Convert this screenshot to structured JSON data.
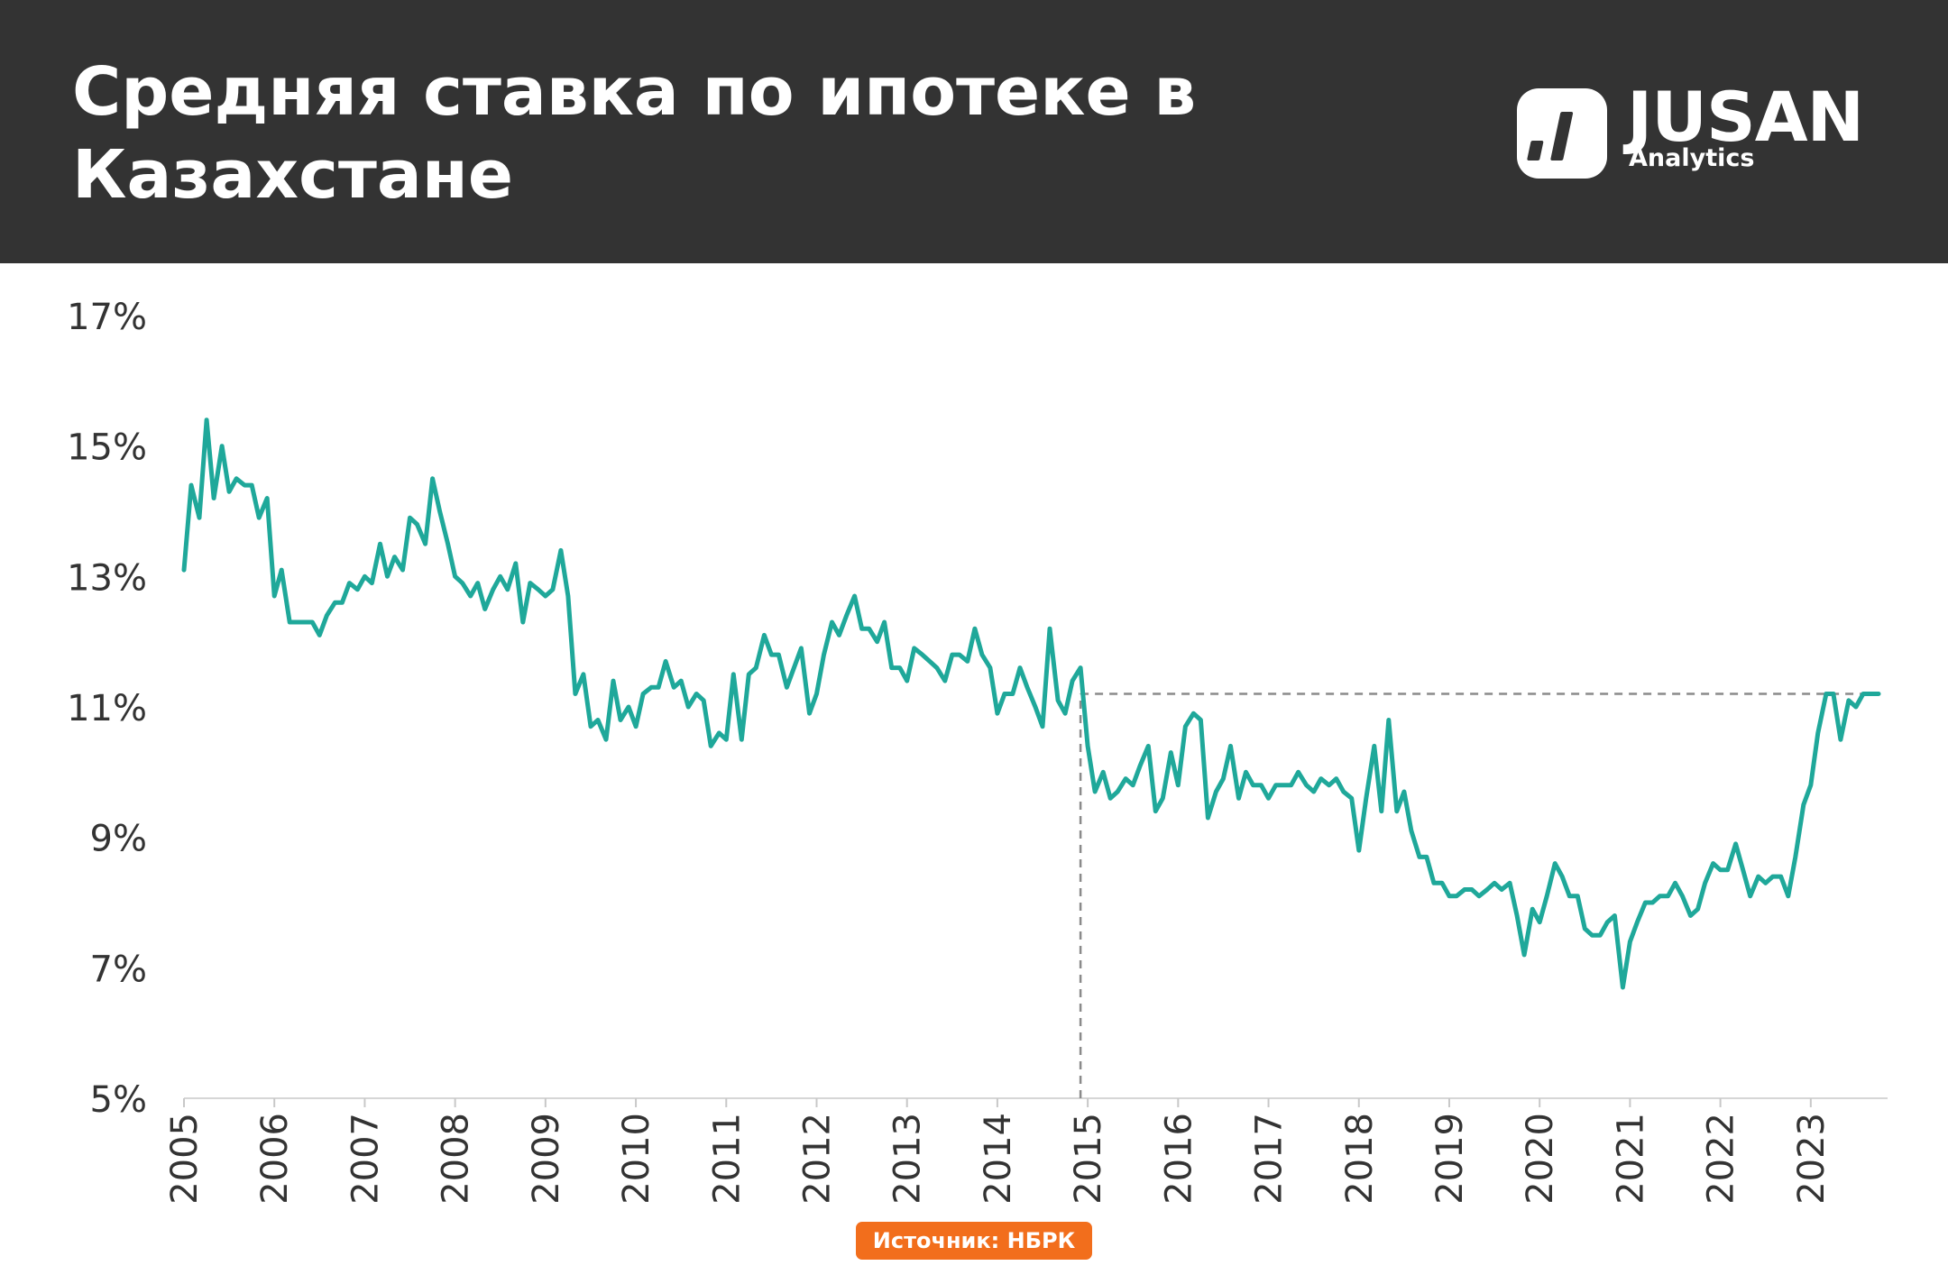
{
  "header": {
    "title_line1": "Средняя ставка по ипотеке в",
    "title_line2": "Казахстане"
  },
  "logo": {
    "name": "JUSAN",
    "subtitle": "Analytics",
    "icon": "chart-bars-icon"
  },
  "source": "Источник: НБРК",
  "colors": {
    "header_bg": "#333333",
    "line": "#1fa89a",
    "reference_line": "#8a8a8a",
    "source_badge": "#f26e1c"
  },
  "chart_data": {
    "type": "line",
    "title": "Средняя ставка по ипотеке в Казахстане",
    "xlabel": "",
    "ylabel": "",
    "x_tick_labels": [
      "2005",
      "2006",
      "2007",
      "2008",
      "2009",
      "2010",
      "2011",
      "2012",
      "2013",
      "2014",
      "2015",
      "2016",
      "2017",
      "2018",
      "2019",
      "2020",
      "2021",
      "2022",
      "2023"
    ],
    "y_tick_labels": [
      "5%",
      "7%",
      "9%",
      "11%",
      "13%",
      "15%",
      "17%"
    ],
    "y_ticks": [
      5,
      7,
      9,
      11,
      13,
      15,
      17
    ],
    "ylim": [
      5,
      17
    ],
    "xlim": [
      2005,
      2023.85
    ],
    "grid": false,
    "legend": "none",
    "series": [
      {
        "values": [
          [
            2005.0,
            13.1
          ],
          [
            2005.08,
            14.4
          ],
          [
            2005.17,
            13.9
          ],
          [
            2005.25,
            15.4
          ],
          [
            2005.33,
            14.2
          ],
          [
            2005.42,
            15.0
          ],
          [
            2005.5,
            14.3
          ],
          [
            2005.58,
            14.5
          ],
          [
            2005.67,
            14.4
          ],
          [
            2005.75,
            14.4
          ],
          [
            2005.83,
            13.9
          ],
          [
            2005.92,
            14.2
          ],
          [
            2006.0,
            12.7
          ],
          [
            2006.08,
            13.1
          ],
          [
            2006.17,
            12.3
          ],
          [
            2006.25,
            12.3
          ],
          [
            2006.33,
            12.3
          ],
          [
            2006.42,
            12.3
          ],
          [
            2006.5,
            12.1
          ],
          [
            2006.58,
            12.4
          ],
          [
            2006.67,
            12.6
          ],
          [
            2006.75,
            12.6
          ],
          [
            2006.83,
            12.9
          ],
          [
            2006.92,
            12.8
          ],
          [
            2007.0,
            13.0
          ],
          [
            2007.08,
            12.9
          ],
          [
            2007.17,
            13.5
          ],
          [
            2007.25,
            13.0
          ],
          [
            2007.33,
            13.3
          ],
          [
            2007.42,
            13.1
          ],
          [
            2007.5,
            13.9
          ],
          [
            2007.58,
            13.8
          ],
          [
            2007.67,
            13.5
          ],
          [
            2007.75,
            14.5
          ],
          [
            2007.83,
            14.0
          ],
          [
            2007.92,
            13.5
          ],
          [
            2008.0,
            13.0
          ],
          [
            2008.08,
            12.9
          ],
          [
            2008.17,
            12.7
          ],
          [
            2008.25,
            12.9
          ],
          [
            2008.33,
            12.5
          ],
          [
            2008.42,
            12.8
          ],
          [
            2008.5,
            13.0
          ],
          [
            2008.58,
            12.8
          ],
          [
            2008.67,
            13.2
          ],
          [
            2008.75,
            12.3
          ],
          [
            2008.83,
            12.9
          ],
          [
            2008.92,
            12.8
          ],
          [
            2009.0,
            12.7
          ],
          [
            2009.08,
            12.8
          ],
          [
            2009.17,
            13.4
          ],
          [
            2009.25,
            12.7
          ],
          [
            2009.33,
            11.2
          ],
          [
            2009.42,
            11.5
          ],
          [
            2009.5,
            10.7
          ],
          [
            2009.58,
            10.8
          ],
          [
            2009.67,
            10.5
          ],
          [
            2009.75,
            11.4
          ],
          [
            2009.83,
            10.8
          ],
          [
            2009.92,
            11.0
          ],
          [
            2010.0,
            10.7
          ],
          [
            2010.08,
            11.2
          ],
          [
            2010.17,
            11.3
          ],
          [
            2010.25,
            11.3
          ],
          [
            2010.33,
            11.7
          ],
          [
            2010.42,
            11.3
          ],
          [
            2010.5,
            11.4
          ],
          [
            2010.58,
            11.0
          ],
          [
            2010.67,
            11.2
          ],
          [
            2010.75,
            11.1
          ],
          [
            2010.83,
            10.4
          ],
          [
            2010.92,
            10.6
          ],
          [
            2011.0,
            10.5
          ],
          [
            2011.08,
            11.5
          ],
          [
            2011.17,
            10.5
          ],
          [
            2011.25,
            11.5
          ],
          [
            2011.33,
            11.6
          ],
          [
            2011.42,
            12.1
          ],
          [
            2011.5,
            11.8
          ],
          [
            2011.58,
            11.8
          ],
          [
            2011.67,
            11.3
          ],
          [
            2011.75,
            11.6
          ],
          [
            2011.83,
            11.9
          ],
          [
            2011.92,
            10.9
          ],
          [
            2012.0,
            11.2
          ],
          [
            2012.08,
            11.8
          ],
          [
            2012.17,
            12.3
          ],
          [
            2012.25,
            12.1
          ],
          [
            2012.33,
            12.4
          ],
          [
            2012.42,
            12.7
          ],
          [
            2012.5,
            12.2
          ],
          [
            2012.58,
            12.2
          ],
          [
            2012.67,
            12.0
          ],
          [
            2012.75,
            12.3
          ],
          [
            2012.83,
            11.6
          ],
          [
            2012.92,
            11.6
          ],
          [
            2013.0,
            11.4
          ],
          [
            2013.08,
            11.9
          ],
          [
            2013.17,
            11.8
          ],
          [
            2013.25,
            11.7
          ],
          [
            2013.33,
            11.6
          ],
          [
            2013.42,
            11.4
          ],
          [
            2013.5,
            11.8
          ],
          [
            2013.58,
            11.8
          ],
          [
            2013.67,
            11.7
          ],
          [
            2013.75,
            12.2
          ],
          [
            2013.83,
            11.8
          ],
          [
            2013.92,
            11.6
          ],
          [
            2014.0,
            10.9
          ],
          [
            2014.08,
            11.2
          ],
          [
            2014.17,
            11.2
          ],
          [
            2014.25,
            11.6
          ],
          [
            2014.33,
            11.3
          ],
          [
            2014.42,
            11.0
          ],
          [
            2014.5,
            10.7
          ],
          [
            2014.58,
            12.2
          ],
          [
            2014.67,
            11.1
          ],
          [
            2014.75,
            10.9
          ],
          [
            2014.83,
            11.4
          ],
          [
            2014.92,
            11.6
          ],
          [
            2015.0,
            10.4
          ],
          [
            2015.08,
            9.7
          ],
          [
            2015.17,
            10.0
          ],
          [
            2015.25,
            9.6
          ],
          [
            2015.33,
            9.7
          ],
          [
            2015.42,
            9.9
          ],
          [
            2015.5,
            9.8
          ],
          [
            2015.58,
            10.1
          ],
          [
            2015.67,
            10.4
          ],
          [
            2015.75,
            9.4
          ],
          [
            2015.83,
            9.6
          ],
          [
            2015.92,
            10.3
          ],
          [
            2016.0,
            9.8
          ],
          [
            2016.08,
            10.7
          ],
          [
            2016.17,
            10.9
          ],
          [
            2016.25,
            10.8
          ],
          [
            2016.33,
            9.3
          ],
          [
            2016.42,
            9.7
          ],
          [
            2016.5,
            9.9
          ],
          [
            2016.58,
            10.4
          ],
          [
            2016.67,
            9.6
          ],
          [
            2016.75,
            10.0
          ],
          [
            2016.83,
            9.8
          ],
          [
            2016.92,
            9.8
          ],
          [
            2017.0,
            9.6
          ],
          [
            2017.08,
            9.8
          ],
          [
            2017.17,
            9.8
          ],
          [
            2017.25,
            9.8
          ],
          [
            2017.33,
            10.0
          ],
          [
            2017.42,
            9.8
          ],
          [
            2017.5,
            9.7
          ],
          [
            2017.58,
            9.9
          ],
          [
            2017.67,
            9.8
          ],
          [
            2017.75,
            9.9
          ],
          [
            2017.83,
            9.7
          ],
          [
            2017.92,
            9.6
          ],
          [
            2018.0,
            8.8
          ],
          [
            2018.08,
            9.6
          ],
          [
            2018.17,
            10.4
          ],
          [
            2018.25,
            9.4
          ],
          [
            2018.33,
            10.8
          ],
          [
            2018.42,
            9.4
          ],
          [
            2018.5,
            9.7
          ],
          [
            2018.58,
            9.1
          ],
          [
            2018.67,
            8.7
          ],
          [
            2018.75,
            8.7
          ],
          [
            2018.83,
            8.3
          ],
          [
            2018.92,
            8.3
          ],
          [
            2019.0,
            8.1
          ],
          [
            2019.08,
            8.1
          ],
          [
            2019.17,
            8.2
          ],
          [
            2019.25,
            8.2
          ],
          [
            2019.33,
            8.1
          ],
          [
            2019.42,
            8.2
          ],
          [
            2019.5,
            8.3
          ],
          [
            2019.58,
            8.2
          ],
          [
            2019.67,
            8.3
          ],
          [
            2019.75,
            7.8
          ],
          [
            2019.83,
            7.2
          ],
          [
            2019.92,
            7.9
          ],
          [
            2020.0,
            7.7
          ],
          [
            2020.08,
            8.1
          ],
          [
            2020.17,
            8.6
          ],
          [
            2020.25,
            8.4
          ],
          [
            2020.33,
            8.1
          ],
          [
            2020.42,
            8.1
          ],
          [
            2020.5,
            7.6
          ],
          [
            2020.58,
            7.5
          ],
          [
            2020.67,
            7.5
          ],
          [
            2020.75,
            7.7
          ],
          [
            2020.83,
            7.8
          ],
          [
            2020.92,
            6.7
          ],
          [
            2021.0,
            7.4
          ],
          [
            2021.08,
            7.7
          ],
          [
            2021.17,
            8.0
          ],
          [
            2021.25,
            8.0
          ],
          [
            2021.33,
            8.1
          ],
          [
            2021.42,
            8.1
          ],
          [
            2021.5,
            8.3
          ],
          [
            2021.58,
            8.1
          ],
          [
            2021.67,
            7.8
          ],
          [
            2021.75,
            7.9
          ],
          [
            2021.83,
            8.3
          ],
          [
            2021.92,
            8.6
          ],
          [
            2022.0,
            8.5
          ],
          [
            2022.08,
            8.5
          ],
          [
            2022.17,
            8.9
          ],
          [
            2022.25,
            8.5
          ],
          [
            2022.33,
            8.1
          ],
          [
            2022.42,
            8.4
          ],
          [
            2022.5,
            8.3
          ],
          [
            2022.58,
            8.4
          ],
          [
            2022.67,
            8.4
          ],
          [
            2022.75,
            8.1
          ],
          [
            2022.83,
            8.7
          ],
          [
            2022.92,
            9.5
          ],
          [
            2023.0,
            9.8
          ],
          [
            2023.08,
            10.6
          ],
          [
            2023.17,
            11.2
          ],
          [
            2023.25,
            11.2
          ],
          [
            2023.33,
            10.5
          ],
          [
            2023.42,
            11.1
          ],
          [
            2023.5,
            11.0
          ],
          [
            2023.58,
            11.2
          ],
          [
            2023.67,
            11.2
          ],
          [
            2023.75,
            11.2
          ]
        ]
      }
    ],
    "reference_lines": [
      {
        "orientation": "horizontal",
        "y": 11.2,
        "x_from": 2014.92,
        "x_to": 2023.75,
        "style": "dashed"
      },
      {
        "orientation": "vertical",
        "x": 2014.92,
        "y_from": 5,
        "y_to": 11.2,
        "style": "dashed"
      }
    ]
  }
}
